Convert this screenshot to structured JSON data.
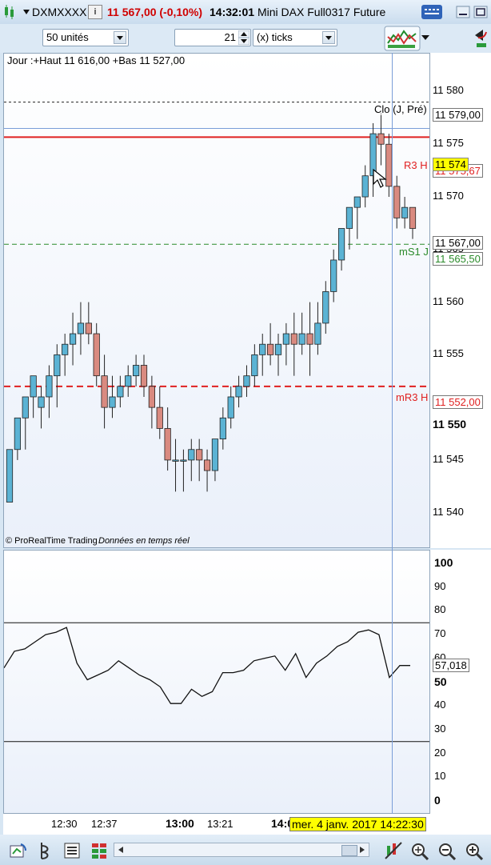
{
  "window": {
    "symbol": "DXMXXXX",
    "info_icon": "i",
    "price_change": "11 567,00 (-0,10%)",
    "time": "14:32:01",
    "instrument": "Mini DAX Full0317 Future"
  },
  "controls": {
    "units": "50 unités",
    "period_value": "21",
    "period_unit": "(x) ticks"
  },
  "chart": {
    "header": "Jour :+Haut 11 616,00 +Bas 11 527,00",
    "footer_brand": "© ProRealTime Trading",
    "footer_feed": "Données en temps réel",
    "price_ticks": [
      "11 580",
      "11 575",
      "11 570",
      "11 565",
      "11 560",
      "11 555",
      "11 550",
      "11 545",
      "11 540"
    ],
    "levels": {
      "clo_label": "Clo (J, Pré)",
      "clo_value": "11 579,00",
      "r3_label": "R3 H",
      "r3_value": "11 575,67",
      "current_price": "11 574",
      "last_value": "11 567,00",
      "ms1_label": "mS1 J",
      "ms1_value": "11 565,50",
      "mr3_label": "mR3 H",
      "mr3_value": "11 552,00"
    },
    "bold_tick": "11 550"
  },
  "oscillator": {
    "ticks": [
      "100",
      "90",
      "80",
      "70",
      "60",
      "50",
      "40",
      "30",
      "20",
      "10",
      "0"
    ],
    "value_label": "57,018"
  },
  "time_axis": {
    "labels": [
      "12:30",
      "12:37",
      "13:00",
      "13:21",
      "14:0"
    ],
    "cursor_date": "mer. 4 janv. 2017 14:22:30"
  },
  "colors": {
    "up": "#5bb3d4",
    "down": "#d98a80",
    "resistance": "#e02020",
    "support": "#2a8a2a",
    "cursor_badge": "#ffff00"
  },
  "chart_data": {
    "type": "candlestick",
    "ylim": [
      11538,
      11583
    ],
    "candles_ohlc": [
      [
        11541,
        11546,
        11541,
        11546
      ],
      [
        11546,
        11549,
        11545,
        11549
      ],
      [
        11549,
        11551,
        11546,
        11551
      ],
      [
        11551,
        11553,
        11549,
        11553
      ],
      [
        11550,
        11552,
        11548,
        11551
      ],
      [
        11551,
        11554,
        11549,
        11553
      ],
      [
        11553,
        11556,
        11550,
        11555
      ],
      [
        11555,
        11557,
        11553,
        11556
      ],
      [
        11556,
        11559,
        11554,
        11557
      ],
      [
        11557,
        11560,
        11555,
        11558
      ],
      [
        11558,
        11560,
        11556,
        11557
      ],
      [
        11557,
        11558,
        11552,
        11553
      ],
      [
        11553,
        11555,
        11548,
        11550
      ],
      [
        11550,
        11553,
        11549,
        11551
      ],
      [
        11551,
        11553,
        11550,
        11552
      ],
      [
        11552,
        11554,
        11551,
        11553
      ],
      [
        11553,
        11555,
        11552,
        11554
      ],
      [
        11554,
        11555,
        11551,
        11552
      ],
      [
        11552,
        11553,
        11548,
        11550
      ],
      [
        11550,
        11552,
        11547,
        11548
      ],
      [
        11548,
        11550,
        11544,
        11545
      ],
      [
        11545,
        11547,
        11542,
        11545
      ],
      [
        11545,
        11546,
        11542,
        11545
      ],
      [
        11545,
        11547,
        11543,
        11546
      ],
      [
        11546,
        11547,
        11543,
        11545
      ],
      [
        11545,
        11546,
        11542,
        11544
      ],
      [
        11544,
        11547,
        11543,
        11547
      ],
      [
        11547,
        11550,
        11546,
        11549
      ],
      [
        11549,
        11552,
        11548,
        11551
      ],
      [
        11551,
        11553,
        11550,
        11552
      ],
      [
        11552,
        11554,
        11551,
        11553
      ],
      [
        11553,
        11556,
        11552,
        11555
      ],
      [
        11555,
        11557,
        11553,
        11556
      ],
      [
        11556,
        11558,
        11554,
        11555
      ],
      [
        11555,
        11557,
        11553,
        11556
      ],
      [
        11556,
        11558,
        11554,
        11557
      ],
      [
        11557,
        11559,
        11553,
        11556
      ],
      [
        11556,
        11559,
        11555,
        11557
      ],
      [
        11557,
        11560,
        11553,
        11556
      ],
      [
        11556,
        11560,
        11555,
        11558
      ],
      [
        11558,
        11562,
        11557,
        11561
      ],
      [
        11561,
        11565,
        11560,
        11564
      ],
      [
        11564,
        11567,
        11563,
        11567
      ],
      [
        11567,
        11569,
        11565,
        11569
      ],
      [
        11569,
        11570,
        11566,
        11570
      ],
      [
        11570,
        11573,
        11569,
        11572
      ],
      [
        11572,
        11577,
        11570,
        11576
      ],
      [
        11576,
        11578,
        11573,
        11575
      ],
      [
        11575,
        11576,
        11570,
        11571
      ],
      [
        11571,
        11572,
        11567,
        11568
      ],
      [
        11568,
        11570,
        11567,
        11569
      ],
      [
        11569,
        11569,
        11566,
        11567
      ]
    ],
    "oscillator_series": [
      56,
      63,
      64,
      67,
      70,
      71,
      73,
      58,
      51,
      53,
      55,
      59,
      56,
      53,
      51,
      48,
      41,
      41,
      47,
      44,
      46,
      54,
      54,
      55,
      59,
      60,
      61,
      55,
      62,
      52,
      58,
      61,
      65,
      67,
      71,
      72,
      70,
      52,
      57,
      57
    ]
  }
}
